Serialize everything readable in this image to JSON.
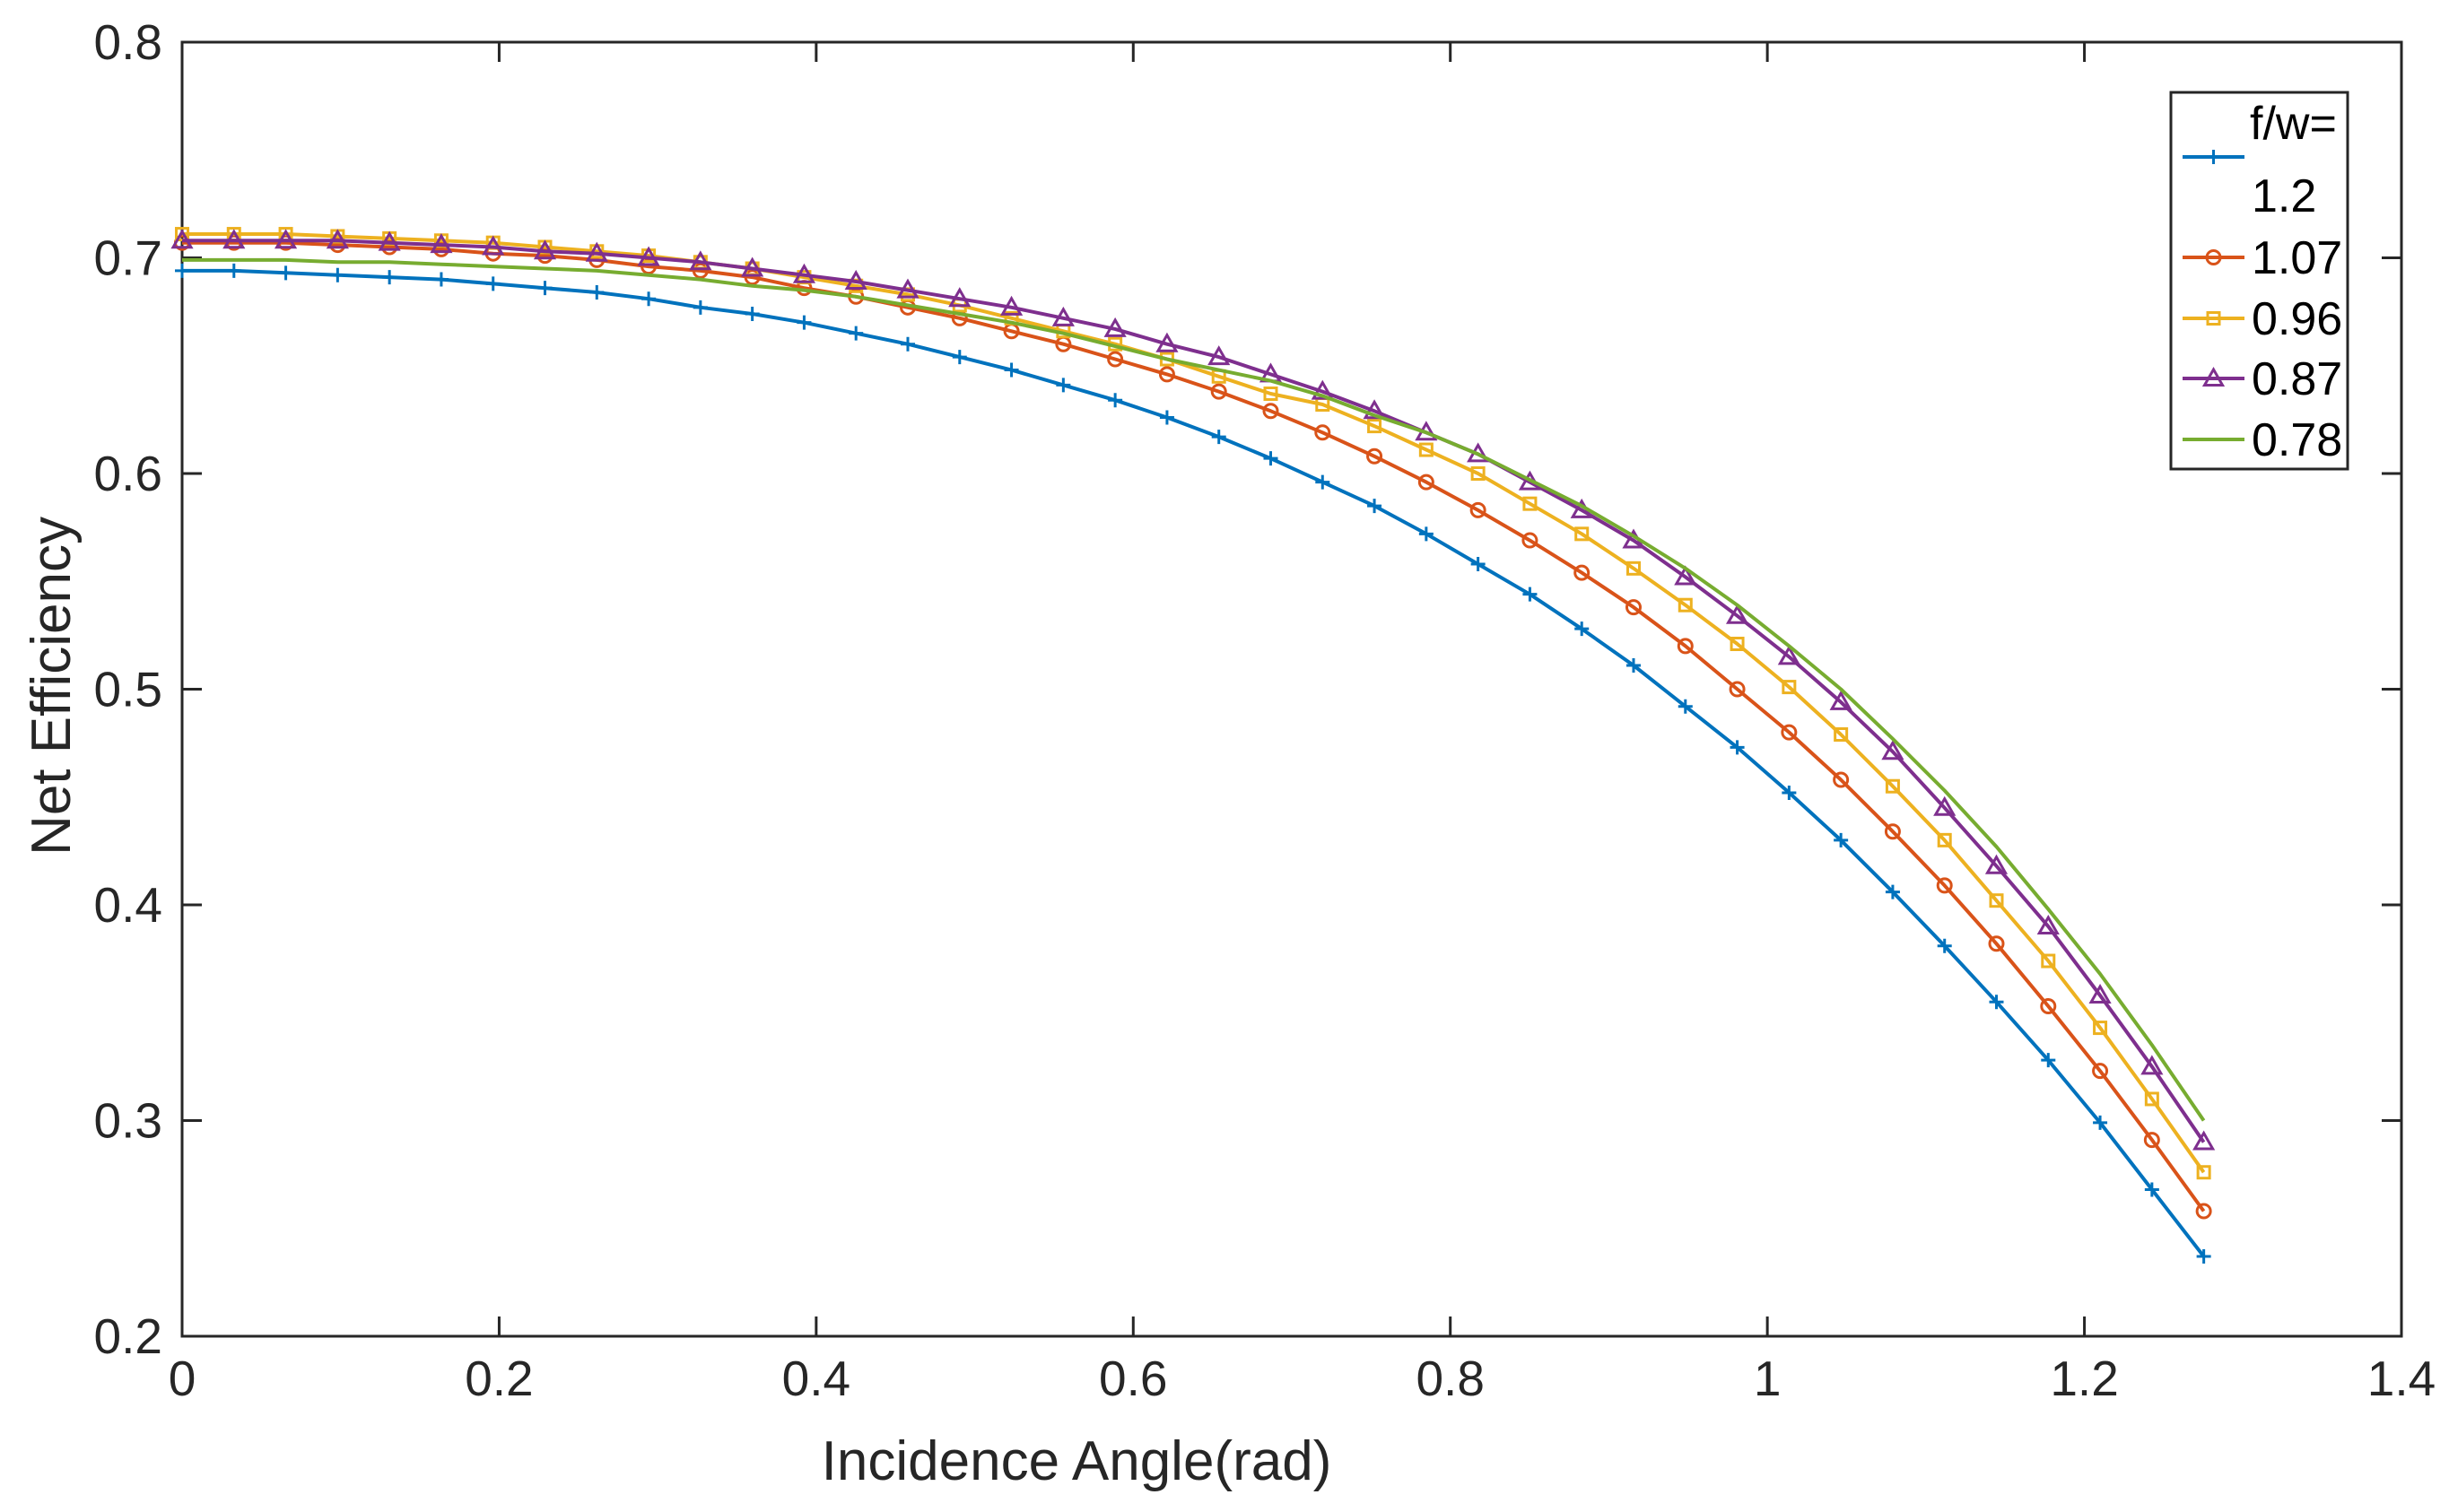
{
  "chart_data": {
    "type": "line",
    "title": "",
    "xlabel": "Incidence Angle(rad)",
    "ylabel": "Net Efficiency",
    "xlim": [
      0,
      1.4
    ],
    "ylim": [
      0.2,
      0.8
    ],
    "xticks": [
      0,
      0.2,
      0.4,
      0.6,
      0.8,
      1,
      1.2,
      1.4
    ],
    "xtick_labels": [
      "0",
      "0.2",
      "0.4",
      "0.6",
      "0.8",
      "1",
      "1.2",
      "1.4"
    ],
    "yticks": [
      0.2,
      0.3,
      0.4,
      0.5,
      0.6,
      0.7,
      0.8
    ],
    "ytick_labels": [
      "0.2",
      "0.3",
      "0.4",
      "0.5",
      "0.6",
      "0.7",
      "0.8"
    ],
    "grid": false,
    "legend": {
      "title": "f/w=",
      "placement": "top-right"
    },
    "x": [
      0,
      0.0327,
      0.0654,
      0.0981,
      0.1308,
      0.1635,
      0.1962,
      0.2289,
      0.2616,
      0.2943,
      0.327,
      0.3597,
      0.3924,
      0.4251,
      0.4578,
      0.4905,
      0.5232,
      0.5559,
      0.5886,
      0.6213,
      0.654,
      0.6867,
      0.7194,
      0.7521,
      0.7848,
      0.8175,
      0.8502,
      0.8829,
      0.9156,
      0.9483,
      0.981,
      1.0137,
      1.0464,
      1.0791,
      1.1118,
      1.1445,
      1.1772,
      1.2099,
      1.2426,
      1.2753
    ],
    "series": [
      {
        "name": "1.2",
        "color": "#0072BD",
        "marker": "plus",
        "values": [
          0.694,
          0.694,
          0.693,
          0.692,
          0.691,
          0.69,
          0.688,
          0.686,
          0.684,
          0.681,
          0.677,
          0.674,
          0.67,
          0.665,
          0.66,
          0.654,
          0.648,
          0.641,
          0.634,
          0.626,
          0.617,
          0.607,
          0.596,
          0.585,
          0.572,
          0.558,
          0.544,
          0.528,
          0.511,
          0.492,
          0.473,
          0.452,
          0.43,
          0.406,
          0.381,
          0.355,
          0.328,
          0.299,
          0.268,
          0.237
        ]
      },
      {
        "name": "1.07",
        "color": "#D95319",
        "marker": "circle",
        "values": [
          0.707,
          0.707,
          0.707,
          0.706,
          0.705,
          0.704,
          0.702,
          0.701,
          0.699,
          0.696,
          0.694,
          0.691,
          0.686,
          0.682,
          0.677,
          0.672,
          0.666,
          0.66,
          0.653,
          0.646,
          0.638,
          0.629,
          0.619,
          0.608,
          0.596,
          0.583,
          0.569,
          0.554,
          0.538,
          0.52,
          0.5,
          0.48,
          0.458,
          0.434,
          0.409,
          0.382,
          0.353,
          0.323,
          0.291,
          0.258
        ]
      },
      {
        "name": "0.96",
        "color": "#EDB120",
        "marker": "square",
        "values": [
          0.711,
          0.711,
          0.711,
          0.71,
          0.709,
          0.708,
          0.707,
          0.705,
          0.703,
          0.701,
          0.698,
          0.695,
          0.691,
          0.687,
          0.683,
          0.678,
          0.672,
          0.666,
          0.66,
          0.653,
          0.645,
          0.637,
          0.632,
          0.622,
          0.611,
          0.6,
          0.586,
          0.572,
          0.556,
          0.539,
          0.521,
          0.501,
          0.479,
          0.455,
          0.43,
          0.402,
          0.374,
          0.343,
          0.31,
          0.276
        ]
      },
      {
        "name": "0.87",
        "color": "#7E2F8E",
        "marker": "triangle",
        "values": [
          0.708,
          0.708,
          0.708,
          0.708,
          0.707,
          0.706,
          0.705,
          0.703,
          0.702,
          0.7,
          0.698,
          0.695,
          0.692,
          0.689,
          0.685,
          0.681,
          0.677,
          0.672,
          0.667,
          0.66,
          0.654,
          0.646,
          0.638,
          0.629,
          0.619,
          0.609,
          0.596,
          0.583,
          0.569,
          0.552,
          0.534,
          0.515,
          0.494,
          0.471,
          0.445,
          0.418,
          0.39,
          0.358,
          0.325,
          0.29
        ]
      },
      {
        "name": "0.78",
        "color": "#77AC30",
        "marker": "none",
        "values": [
          0.699,
          0.699,
          0.699,
          0.698,
          0.698,
          0.697,
          0.696,
          0.695,
          0.694,
          0.692,
          0.69,
          0.687,
          0.685,
          0.682,
          0.678,
          0.674,
          0.67,
          0.665,
          0.659,
          0.653,
          0.648,
          0.643,
          0.636,
          0.627,
          0.619,
          0.609,
          0.597,
          0.585,
          0.571,
          0.556,
          0.539,
          0.52,
          0.5,
          0.477,
          0.453,
          0.427,
          0.398,
          0.368,
          0.335,
          0.3
        ]
      }
    ]
  }
}
